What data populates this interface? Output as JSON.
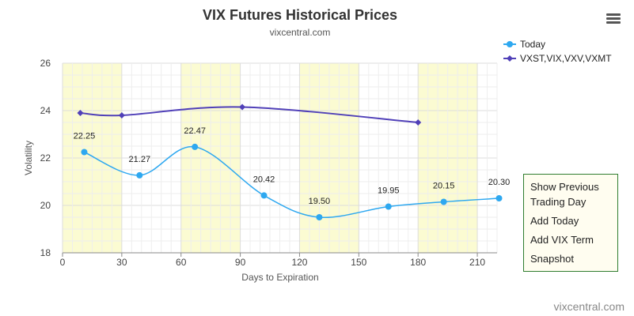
{
  "chart_data": {
    "type": "line",
    "title": "VIX Futures Historical Prices",
    "subtitle": "vixcentral.com",
    "xlabel": "Days to Expiration",
    "ylabel": "Volatility",
    "xlim": [
      0,
      220
    ],
    "ylim": [
      18,
      26
    ],
    "x_ticks": [
      0,
      30,
      60,
      90,
      120,
      150,
      180,
      210
    ],
    "y_ticks": [
      18,
      20,
      22,
      24,
      26
    ],
    "shaded_bands": [
      [
        0,
        30
      ],
      [
        60,
        90
      ],
      [
        120,
        150
      ],
      [
        180,
        210
      ]
    ],
    "grid": true,
    "legend_position": "top-right",
    "series": [
      {
        "name": "Today",
        "color": "#2ea8f0",
        "marker": "circle",
        "smooth": true,
        "x": [
          11,
          39,
          67,
          102,
          130,
          165,
          193,
          221
        ],
        "values": [
          22.25,
          21.27,
          22.47,
          20.42,
          19.5,
          19.95,
          20.15,
          20.3
        ],
        "labels": [
          "22.25",
          "21.27",
          "22.47",
          "20.42",
          "19.50",
          "19.95",
          "20.15",
          "20.30"
        ]
      },
      {
        "name": "VXST,VIX,VXV,VXMT",
        "color": "#5040b8",
        "marker": "diamond",
        "smooth": true,
        "x": [
          9,
          30,
          91,
          180
        ],
        "values": [
          23.9,
          23.8,
          24.15,
          23.5
        ]
      }
    ]
  },
  "menu": {
    "items": [
      "Show Previous Trading Day",
      "Add Today",
      "Add VIX Term",
      "Snapshot"
    ]
  },
  "credit": "vixcentral.com"
}
